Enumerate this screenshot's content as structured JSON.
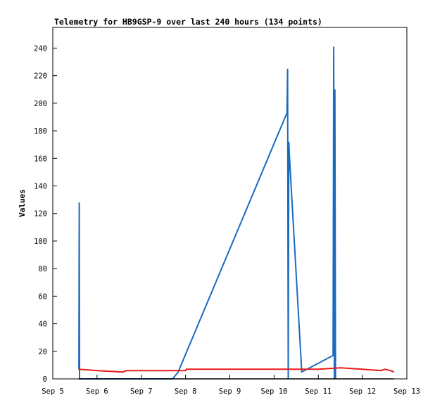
{
  "chart_data": {
    "type": "line",
    "title": "Telemetry for HB9GSP-9 over last 240 hours (134 points)",
    "xlabel": "",
    "ylabel": "Values",
    "xlim": [
      "Sep 5",
      "Sep 13"
    ],
    "ylim": [
      0,
      255
    ],
    "x_ticks": [
      "Sep 5",
      "Sep 6",
      "Sep 7",
      "Sep 8",
      "Sep 9",
      "Sep 10",
      "Sep 11",
      "Sep 12",
      "Sep 13"
    ],
    "y_ticks": [
      0,
      20,
      40,
      60,
      80,
      100,
      120,
      140,
      160,
      180,
      200,
      220,
      240
    ],
    "grid": false,
    "legend": "none",
    "series": [
      {
        "color": "#1a6bbf",
        "points": [
          [
            "Sep 5 14:10",
            7
          ],
          [
            "Sep 5 14:20",
            128
          ],
          [
            "Sep 5 14:30",
            0
          ],
          [
            "Sep 7 17:00",
            0
          ],
          [
            "Sep 7 20:00",
            5
          ],
          [
            "Sep 10 07:00",
            193
          ],
          [
            "Sep 10 07:20",
            225
          ],
          [
            "Sep 10 07:40",
            0
          ],
          [
            "Sep 10 08:00",
            172
          ],
          [
            "Sep 10 08:30",
            158
          ],
          [
            "Sep 10 15:00",
            5
          ],
          [
            "Sep 11 08:00",
            17
          ],
          [
            "Sep 11 08:20",
            241
          ],
          [
            "Sep 11 08:40",
            0
          ],
          [
            "Sep 11 09:00",
            210
          ],
          [
            "Sep 11 09:20",
            0
          ]
        ]
      },
      {
        "color": "#e8191a",
        "points": [
          [
            "Sep 5 14:00",
            7
          ],
          [
            "Sep 6 00:00",
            6
          ],
          [
            "Sep 6 14:00",
            5
          ],
          [
            "Sep 6 16:00",
            6
          ],
          [
            "Sep 8 00:00",
            6
          ],
          [
            "Sep 8 00:30",
            7
          ],
          [
            "Sep 11 00:00",
            7
          ],
          [
            "Sep 11 12:00",
            8
          ],
          [
            "Sep 12 00:00",
            7
          ],
          [
            "Sep 12 10:00",
            6
          ],
          [
            "Sep 12 12:00",
            7
          ],
          [
            "Sep 12 15:00",
            6
          ],
          [
            "Sep 12 17:00",
            5
          ]
        ]
      },
      {
        "color": "#000000",
        "points": [
          [
            "Sep 5 14:00",
            0
          ],
          [
            "Sep 12 17:00",
            0
          ]
        ]
      }
    ]
  }
}
